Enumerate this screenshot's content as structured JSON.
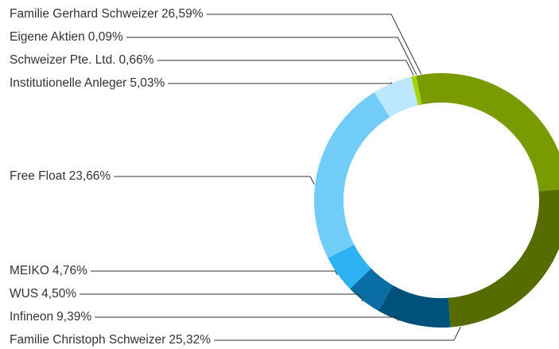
{
  "chart_data": {
    "type": "donut",
    "categories": [
      "Familie Gerhard Schweizer",
      "Familie Christoph Schweizer",
      "Infineon",
      "WUS",
      "MEIKO",
      "Free Float",
      "Institutionelle Anleger",
      "Schweizer Pte. Ltd.",
      "Eigene Aktien"
    ],
    "values": [
      26.59,
      25.32,
      9.39,
      4.5,
      4.76,
      23.66,
      5.03,
      0.66,
      0.09
    ],
    "value_labels": [
      "26,59%",
      "25,32%",
      "9,39%",
      "4,50%",
      "4,76%",
      "23,66%",
      "5,03%",
      "0,66%",
      "0,09%"
    ],
    "colors": [
      "#7a9a01",
      "#566b00",
      "#00527c",
      "#0a6ea5",
      "#2cb2f2",
      "#72ccf8",
      "#bce7fc",
      "#a3d400",
      "#5d7a00"
    ]
  }
}
